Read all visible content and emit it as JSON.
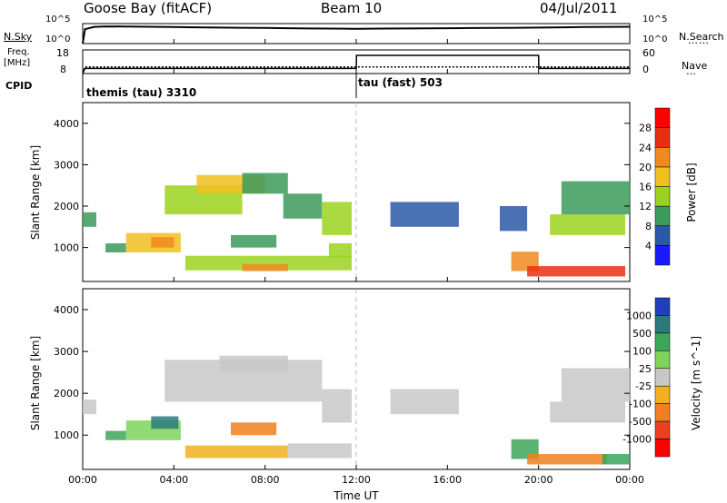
{
  "header": {
    "station": "Goose Bay (fitACF)",
    "beam": "Beam 10",
    "date": "04/Jul/2011"
  },
  "noise_panel": {
    "left_label": "N.Sky",
    "right_label": "N.Search",
    "left_ticks": [
      "10^5",
      "10^0"
    ],
    "right_ticks": [
      "10^5",
      "10^0"
    ]
  },
  "freq_panel": {
    "left_label_top": "Freq.",
    "left_label_bottom": "[MHz]",
    "right_label": "Nave",
    "left_ticks": [
      "18",
      "8"
    ],
    "right_ticks": [
      "60",
      "0"
    ]
  },
  "cpid": {
    "label": "CPID",
    "segments": [
      {
        "name": "themis (tau) 3310",
        "start_hour": 0
      },
      {
        "name": "tau (fast) 503",
        "start_hour": 12
      }
    ]
  },
  "time_axis": {
    "label": "Time UT",
    "ticks": [
      "00:00",
      "04:00",
      "08:00",
      "12:00",
      "16:00",
      "20:00",
      "00:00"
    ]
  },
  "range_axis": {
    "label": "Slant Range [km]",
    "ticks": [
      "1000",
      "2000",
      "3000",
      "4000"
    ]
  },
  "power_scale": {
    "label": "Power [dB]",
    "ticks": [
      "4",
      "8",
      "12",
      "16",
      "20",
      "24",
      "28"
    ],
    "colors": [
      "#1a1aff",
      "#2b58a8",
      "#3c9a5a",
      "#9bd21e",
      "#f0c020",
      "#f08a20",
      "#e83010",
      "#ff0000"
    ]
  },
  "velocity_scale": {
    "label": "Velocity [m s^-1]",
    "ticks": [
      "1000",
      "500",
      "100",
      "25",
      "-25",
      "-100",
      "-500",
      "-1000"
    ],
    "colors": [
      "#1f3fbf",
      "#2a7a7a",
      "#3ca65a",
      "#7fd35a",
      "#c8c8c8",
      "#f0b020",
      "#f08020",
      "#e84020",
      "#ff0000"
    ]
  },
  "chart_data": [
    {
      "type": "line",
      "title": "N.Sky / N.Search",
      "x_range_hours": [
        0,
        24
      ],
      "y_scale": "log",
      "ylim": [
        1,
        100000
      ],
      "series": [
        {
          "name": "N.Sky",
          "x": [
            0,
            0.1,
            0.5,
            1,
            2,
            3,
            4,
            5,
            6,
            7,
            8,
            9,
            10,
            11,
            12,
            13,
            14,
            15,
            16,
            17,
            18,
            19,
            20,
            21,
            22,
            23,
            24
          ],
          "values": [
            1,
            4000,
            15000,
            20000,
            18000,
            16000,
            14000,
            12000,
            10000,
            9000,
            8000,
            7000,
            6000,
            5500,
            5000,
            5500,
            6000,
            6500,
            7000,
            7500,
            8000,
            9000,
            10000,
            12000,
            14000,
            15000,
            16000
          ]
        }
      ]
    },
    {
      "type": "line",
      "title": "Freq / Nave",
      "x_range_hours": [
        0,
        24
      ],
      "series": [
        {
          "name": "Freq.",
          "x": [
            0,
            0.1,
            24
          ],
          "values": [
            8,
            11,
            11
          ]
        },
        {
          "name": "Nave",
          "x": [
            0,
            0.1,
            12,
            12.01,
            20,
            20.01,
            24
          ],
          "values": [
            0,
            14,
            14,
            50,
            50,
            14,
            14
          ]
        }
      ]
    },
    {
      "type": "heatmap",
      "title": "Power [dB]",
      "xlabel": "Time UT",
      "ylabel": "Slant Range [km]",
      "x_range_hours": [
        0,
        24
      ],
      "ylim": [
        180,
        4500
      ],
      "regions": [
        {
          "t0": 0.0,
          "t1": 0.6,
          "r0": 1500,
          "r1": 1850,
          "value": 8
        },
        {
          "t0": 1.0,
          "t1": 1.9,
          "r0": 880,
          "r1": 1100,
          "value": 10
        },
        {
          "t0": 1.9,
          "t1": 4.3,
          "r0": 880,
          "r1": 1350,
          "value": 16
        },
        {
          "t0": 3.0,
          "t1": 4.0,
          "r0": 1000,
          "r1": 1250,
          "value": 22
        },
        {
          "t0": 3.6,
          "t1": 7.0,
          "r0": 1800,
          "r1": 2500,
          "value": 14
        },
        {
          "t0": 5.0,
          "t1": 8.0,
          "r0": 2300,
          "r1": 2750,
          "value": 18
        },
        {
          "t0": 7.0,
          "t1": 9.0,
          "r0": 2300,
          "r1": 2800,
          "value": 10
        },
        {
          "t0": 8.8,
          "t1": 10.5,
          "r0": 1700,
          "r1": 2300,
          "value": 10
        },
        {
          "t0": 10.5,
          "t1": 11.8,
          "r0": 1300,
          "r1": 2100,
          "value": 12
        },
        {
          "t0": 6.5,
          "t1": 8.5,
          "r0": 1000,
          "r1": 1300,
          "value": 8
        },
        {
          "t0": 4.5,
          "t1": 11.8,
          "r0": 450,
          "r1": 800,
          "value": 14
        },
        {
          "t0": 7.0,
          "t1": 9.0,
          "r0": 430,
          "r1": 600,
          "value": 22
        },
        {
          "t0": 10.8,
          "t1": 11.8,
          "r0": 750,
          "r1": 1100,
          "value": 12
        },
        {
          "t0": 13.5,
          "t1": 16.5,
          "r0": 1500,
          "r1": 2100,
          "value": 6
        },
        {
          "t0": 18.8,
          "t1": 20.0,
          "r0": 430,
          "r1": 900,
          "value": 20
        },
        {
          "t0": 19.5,
          "t1": 23.8,
          "r0": 300,
          "r1": 550,
          "value": 24
        },
        {
          "t0": 20.5,
          "t1": 23.8,
          "r0": 1300,
          "r1": 1800,
          "value": 14
        },
        {
          "t0": 21.0,
          "t1": 24.0,
          "r0": 1800,
          "r1": 2600,
          "value": 8
        },
        {
          "t0": 18.3,
          "t1": 19.5,
          "r0": 1400,
          "r1": 2000,
          "value": 6
        }
      ]
    },
    {
      "type": "heatmap",
      "title": "Velocity [m s^-1]",
      "xlabel": "Time UT",
      "ylabel": "Slant Range [km]",
      "x_range_hours": [
        0,
        24
      ],
      "ylim": [
        180,
        4500
      ],
      "regions": [
        {
          "t0": 0.0,
          "t1": 0.6,
          "r0": 1500,
          "r1": 1850,
          "value": 0
        },
        {
          "t0": 1.0,
          "t1": 1.9,
          "r0": 880,
          "r1": 1100,
          "value": 200
        },
        {
          "t0": 1.9,
          "t1": 4.3,
          "r0": 880,
          "r1": 1350,
          "value": 50
        },
        {
          "t0": 3.0,
          "t1": 4.2,
          "r0": 1150,
          "r1": 1450,
          "value": 800
        },
        {
          "t0": 3.6,
          "t1": 10.5,
          "r0": 1800,
          "r1": 2800,
          "value": 0
        },
        {
          "t0": 6.0,
          "t1": 9.0,
          "r0": 2500,
          "r1": 2900,
          "value": 0
        },
        {
          "t0": 10.5,
          "t1": 11.8,
          "r0": 1300,
          "r1": 2100,
          "value": 0
        },
        {
          "t0": 6.5,
          "t1": 8.5,
          "r0": 1000,
          "r1": 1300,
          "value": -400
        },
        {
          "t0": 4.5,
          "t1": 9.0,
          "r0": 450,
          "r1": 750,
          "value": -80
        },
        {
          "t0": 9.0,
          "t1": 11.8,
          "r0": 450,
          "r1": 800,
          "value": 0
        },
        {
          "t0": 13.5,
          "t1": 16.5,
          "r0": 1500,
          "r1": 2100,
          "value": 0
        },
        {
          "t0": 18.8,
          "t1": 20.0,
          "r0": 430,
          "r1": 900,
          "value": 300
        },
        {
          "t0": 19.5,
          "t1": 23.0,
          "r0": 300,
          "r1": 550,
          "value": -300
        },
        {
          "t0": 22.8,
          "t1": 24.0,
          "r0": 300,
          "r1": 550,
          "value": 100
        },
        {
          "t0": 20.5,
          "t1": 23.8,
          "r0": 1300,
          "r1": 1800,
          "value": 0
        },
        {
          "t0": 21.0,
          "t1": 24.0,
          "r0": 1800,
          "r1": 2600,
          "value": 0
        }
      ]
    }
  ]
}
